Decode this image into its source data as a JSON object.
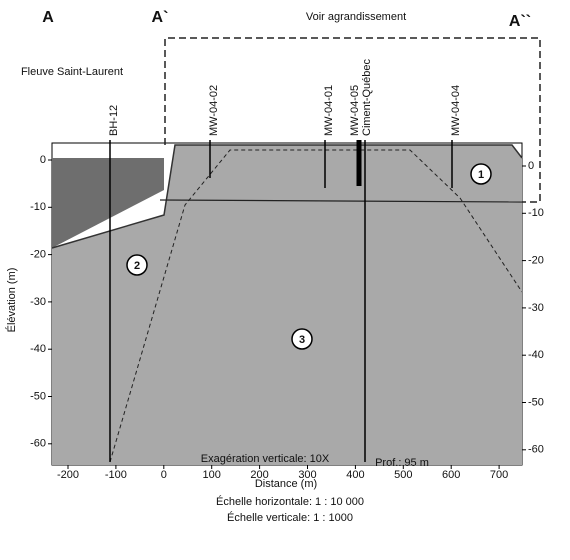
{
  "header": {
    "section_a": "A",
    "section_a1": "A`",
    "section_a2": "A``",
    "enlargement": "Voir agrandissement"
  },
  "river": "Fleuve Saint-Laurent",
  "wells": [
    "BH-12",
    "MW-04-02",
    "MW-04-01",
    "MW-04-05",
    "Ciment-Québec",
    "MW-04-04"
  ],
  "units": [
    "1",
    "2",
    "3"
  ],
  "axes": {
    "y_title": "Élévation (m)",
    "x_title": "Distance (m)",
    "y_left_ticks": [
      "0",
      "-10",
      "-20",
      "-30",
      "-40",
      "-50",
      "-60"
    ],
    "y_right_ticks": [
      "0",
      "-10",
      "-20",
      "-30",
      "-40",
      "-50",
      "-60"
    ],
    "x_ticks": [
      "-200",
      "-100",
      "0",
      "100",
      "200",
      "300",
      "400",
      "500",
      "600",
      "700"
    ]
  },
  "notes": {
    "exaggeration": "Exagération verticale: 10X",
    "depth": "Prof.: 95 m",
    "h_scale": "Échelle horizontale: 1 : 10 000",
    "v_scale": "Échelle verticale: 1 : 1000"
  }
}
